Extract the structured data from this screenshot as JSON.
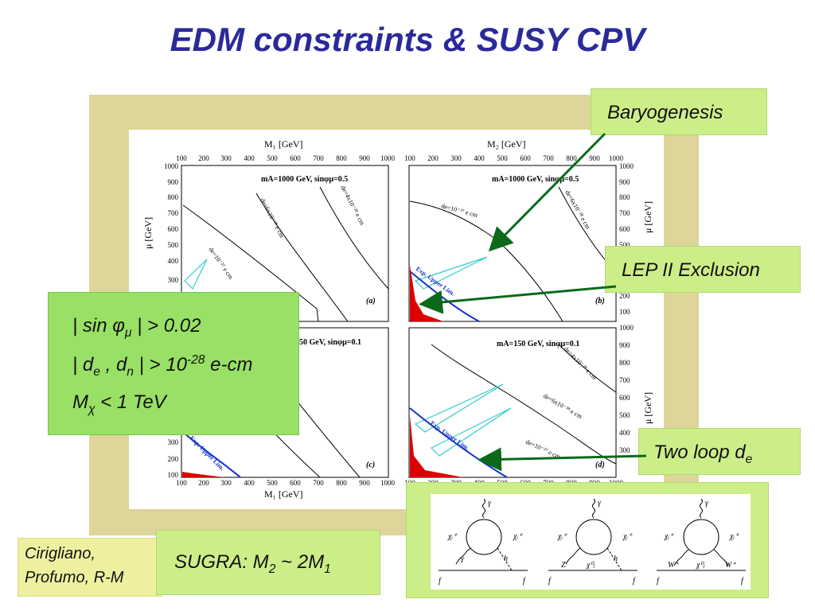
{
  "slide": {
    "title": "EDM constraints & SUSY CPV"
  },
  "callouts": {
    "baryogenesis": "Baryogenesis",
    "lep": "LEP II Exclusion",
    "two_loop_main": "Two loop d",
    "two_loop_sub": "e"
  },
  "constraints": {
    "line1_a": "| sin ",
    "line1_phi": "φ",
    "line1_mu": "μ",
    "line1_b": " | > 0.02",
    "line2_a": "| d",
    "line2_e": "e",
    "line2_b": " , d",
    "line2_n": "n",
    "line2_c": " | > 10",
    "line2_exp": "-28",
    "line2_d": " e-cm",
    "line3_a": "M",
    "line3_chi": "χ",
    "line3_b": "  < 1 TeV"
  },
  "authors": {
    "line1": "Cirigliano,",
    "line2": "Profumo, R-M"
  },
  "sugra": {
    "a": "SUGRA: M",
    "s1": "2",
    "b": " ~ 2M",
    "s2": "1"
  },
  "plots": {
    "top_axis_left": "M₁ [GeV]",
    "top_axis_right": "M₂ [GeV]",
    "bottom_axis": "M₁ [GeV]",
    "y_axis_left": "μ [GeV]",
    "y_axis_right": "μ [GeV]",
    "x_ticks": [
      "100",
      "200",
      "300",
      "400",
      "500",
      "600",
      "700",
      "800",
      "900",
      "1000"
    ],
    "y_ticks_top": [
      "1000",
      "900",
      "800",
      "700",
      "600",
      "500",
      "400",
      "300",
      "200",
      "100"
    ],
    "y_ticks_bottom": [
      "400",
      "300",
      "200",
      "100"
    ],
    "y_ticks_right_bottom": [
      "1000",
      "900",
      "800",
      "700",
      "600",
      "500",
      "400",
      "300",
      "200"
    ],
    "panel_a_title": "mA=1000 GeV, sinφμ=0.5",
    "panel_b_title": "mA=1000 GeV, sinφμ=0.5",
    "panel_c_title": "50 GeV, sinφμ=0.1",
    "panel_d_title": "mA=150 GeV, sinφμ=0.1",
    "panel_a_label": "(a)",
    "panel_b_label": "(b)",
    "panel_c_label": "(c)",
    "panel_d_label": "(d)",
    "curve_a1": "de=10⁻²⁷ e cm",
    "curve_a2": "de=6x10⁻²⁸ e cm",
    "curve_a3": "de=4x10⁻²⁸ e cm",
    "curve_b1": "de=10⁻²⁷ e cm",
    "curve_b2": "de=6x10⁻²⁸ e cm",
    "curve_d1": "de=4x10⁻²⁸ e cm",
    "curve_d2": "de=6x10⁻²⁸ e cm",
    "curve_d3": "de=10⁻²⁷ e cm",
    "exp_limit": "Exp. Upper Lim."
  },
  "diagrams": {
    "gamma": "γ",
    "chi_plus": "χᵢ⁺",
    "chi_zero": "χ⁰ⱼ",
    "h": "h",
    "Z": "Z",
    "W_plus": "W⁺",
    "f": "f"
  },
  "colors": {
    "title": "#2b2a9b",
    "arrow": "#0a6a1a",
    "frame": "#ddd59a",
    "callout": "#ccee88",
    "green_box": "#99e066",
    "exp_line": "#1133cc",
    "cyan": "#33cccc",
    "red": "#dd0000"
  }
}
